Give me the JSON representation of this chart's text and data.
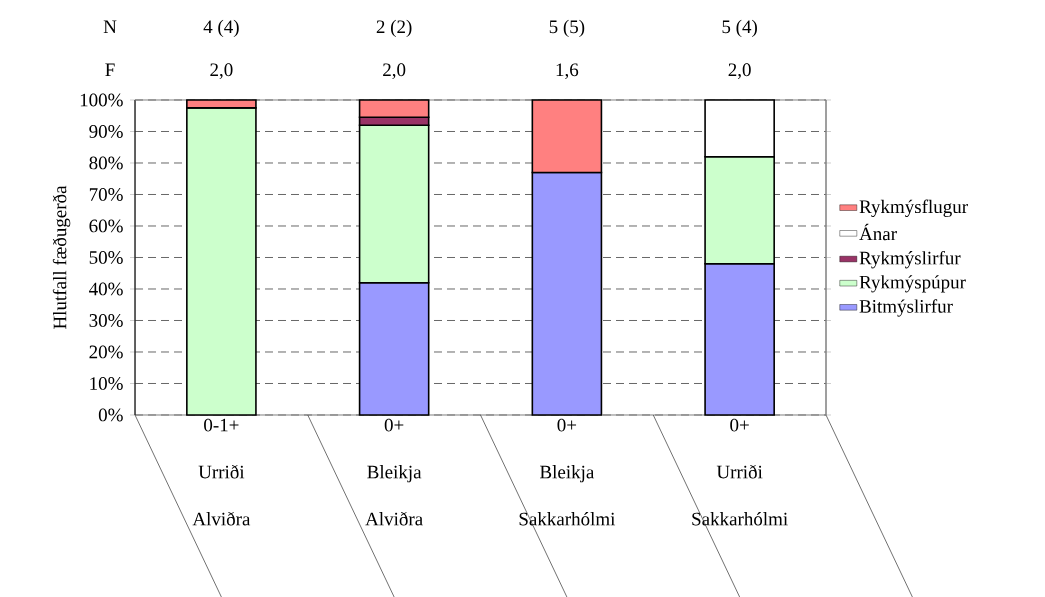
{
  "chart_data": {
    "type": "bar",
    "stacked": true,
    "ylabel": "Hlutfall fæðugerða",
    "categories": [
      "0-1+ Urriði Alviðra",
      "0+ Bleikja Alviðra",
      "0+ Bleikja Sakkarhólmi",
      "0+ Urriði Sakkarhólmi"
    ],
    "series": [
      {
        "name": "Bitmýslirfur",
        "color": "#9999ff",
        "values": [
          null,
          42,
          77,
          48
        ]
      },
      {
        "name": "Rykmýspúpur",
        "color": "#ccffcc",
        "values": [
          97.5,
          50,
          null,
          34
        ]
      },
      {
        "name": "Rykmýslirfur",
        "color": "#993366",
        "values": [
          null,
          2.5,
          null,
          null
        ]
      },
      {
        "name": "Ánar",
        "color": "#ffffff",
        "values": [
          null,
          null,
          null,
          18
        ]
      },
      {
        "name": "Rykmýsflugur",
        "color": "#ff8080",
        "values": [
          2.5,
          5.5,
          23,
          null
        ]
      }
    ],
    "ylim": [
      0,
      100
    ],
    "yticks": [
      {
        "value": 0,
        "label": "0%"
      },
      {
        "value": 10,
        "label": "10%"
      },
      {
        "value": 20,
        "label": "20%"
      },
      {
        "value": 30,
        "label": "30%"
      },
      {
        "value": 40,
        "label": "40%"
      },
      {
        "value": 50,
        "label": "50%"
      },
      {
        "value": 60,
        "label": "60%"
      },
      {
        "value": 70,
        "label": "70%"
      },
      {
        "value": 80,
        "label": "80%"
      },
      {
        "value": 90,
        "label": "90%"
      },
      {
        "value": 100,
        "label": "100%"
      }
    ],
    "grid": "y",
    "legend": "right",
    "annotations": [
      "N",
      "4 (4)",
      "2 (2)",
      "5 (5)",
      "5 (4)",
      "F",
      "2,0",
      "2,0",
      "1,6",
      "2,0"
    ]
  }
}
